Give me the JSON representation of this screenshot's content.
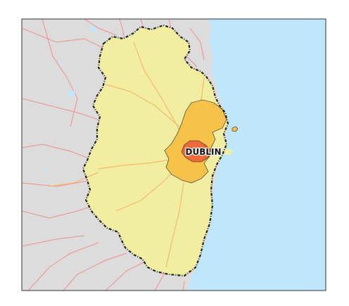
{
  "map": {
    "city_label": "DUBLIN",
    "colors": {
      "sea": "#bfe6fb",
      "land_outside": "#dcdcdc",
      "region": "#f1eea2",
      "metro_zone": "#f7c24a",
      "city_core": "#ef6a3a",
      "border": "#222222",
      "roads": "#f08d8d",
      "major_roads": "#f6b96b",
      "water_bodies": "#bfe6fb",
      "frame": "#333333"
    },
    "layers": [
      "sea",
      "land",
      "roads",
      "lakes",
      "region-boundary",
      "metro-zone",
      "city-core",
      "city-label"
    ]
  }
}
